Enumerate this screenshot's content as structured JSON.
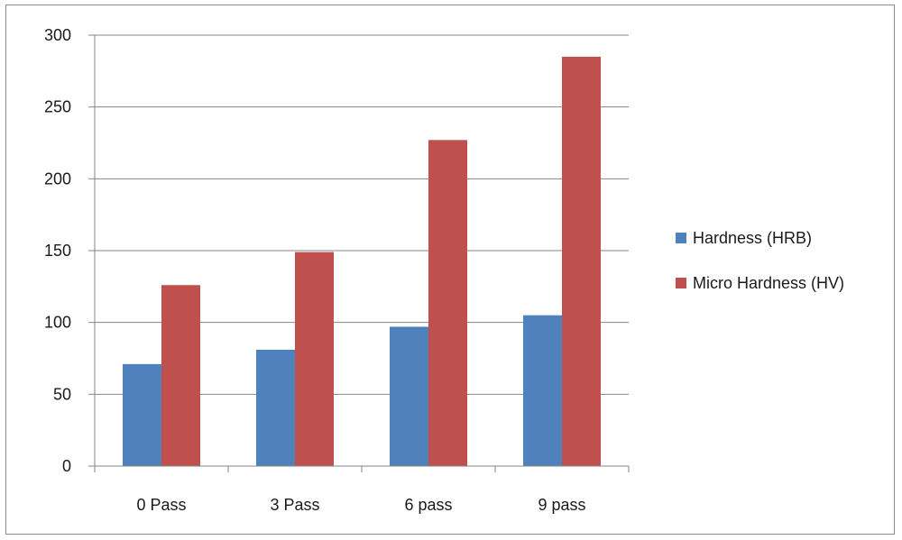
{
  "chart_data": {
    "type": "bar",
    "categories": [
      "0 Pass",
      "3 Pass",
      "6 pass",
      "9 pass"
    ],
    "series": [
      {
        "name": "Hardness (HRB)",
        "values": [
          71,
          81,
          97,
          105
        ],
        "color": "#4f81bd"
      },
      {
        "name": "Micro Hardness (HV)",
        "values": [
          126,
          149,
          227,
          285
        ],
        "color": "#c0504d"
      }
    ],
    "title": "",
    "xlabel": "",
    "ylabel": "",
    "ylim": [
      0,
      300
    ],
    "yticks": [
      "0",
      "50",
      "100",
      "150",
      "200",
      "250",
      "300"
    ],
    "grid": true,
    "legend_position": "right"
  }
}
